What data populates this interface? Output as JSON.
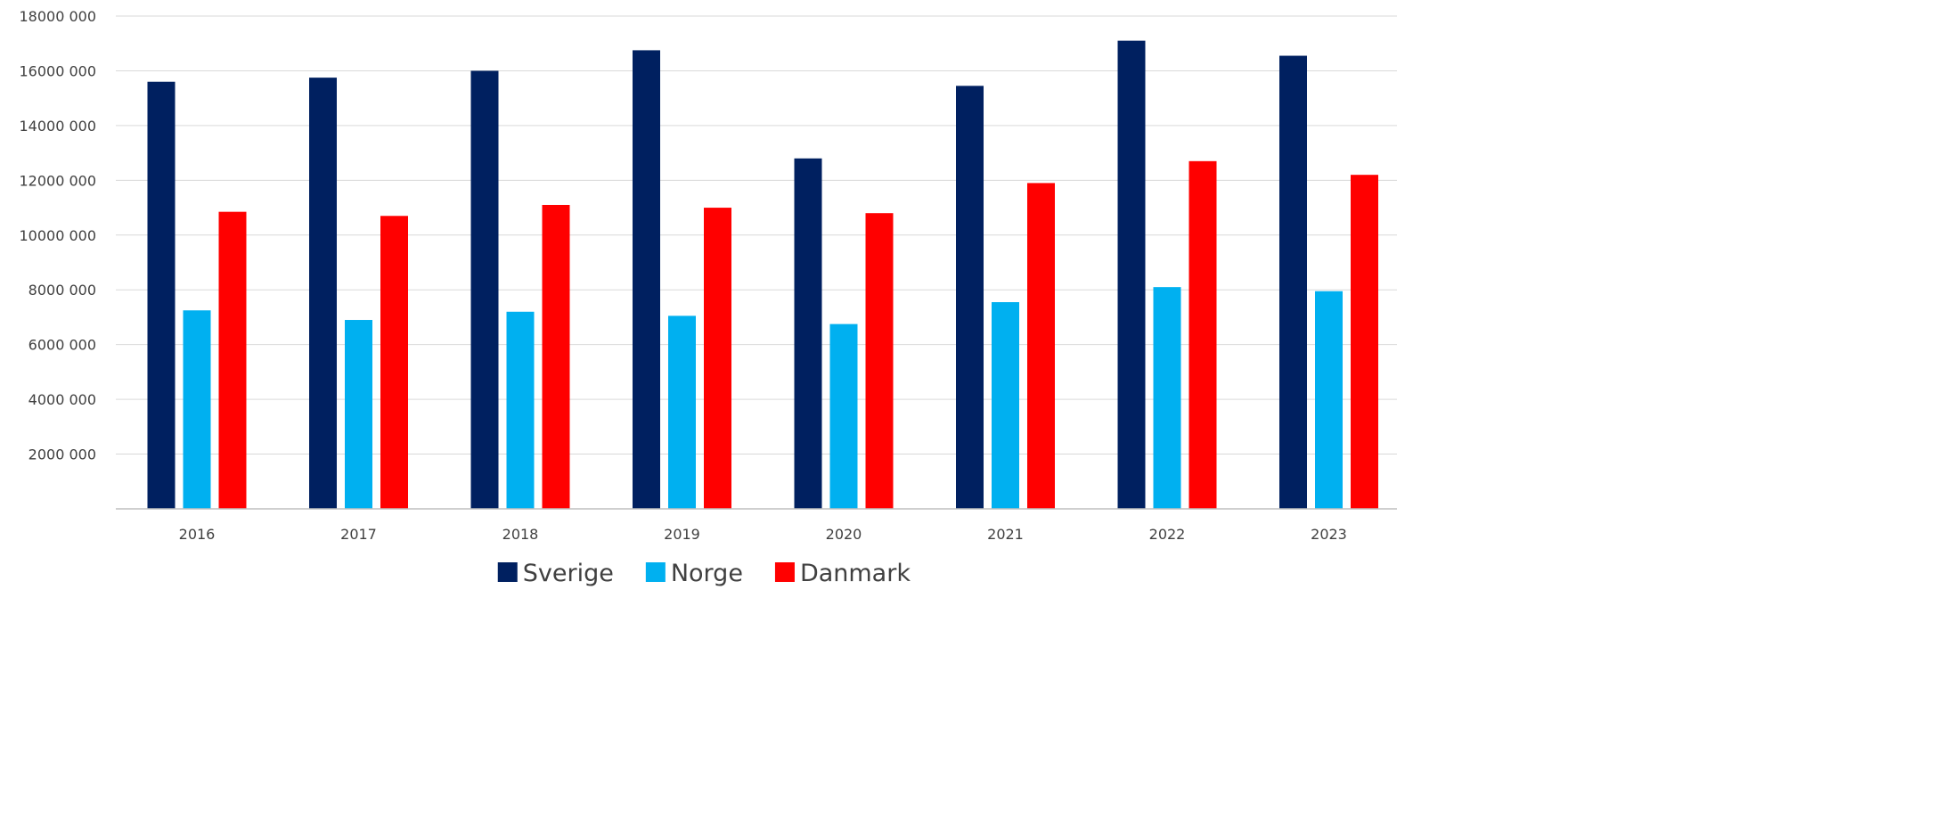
{
  "chart_data": {
    "type": "bar",
    "title": "",
    "xlabel": "",
    "ylabel": "",
    "categories": [
      "2016",
      "2017",
      "2018",
      "2019",
      "2020",
      "2021",
      "2022",
      "2023"
    ],
    "series": [
      {
        "name": "Sverige",
        "color": "#002060",
        "values": [
          15600000,
          15750000,
          16000000,
          16750000,
          12800000,
          15450000,
          17100000,
          16550000
        ]
      },
      {
        "name": "Norge",
        "color": "#00B0F0",
        "values": [
          7250000,
          6900000,
          7200000,
          7050000,
          6750000,
          7550000,
          8100000,
          7950000
        ]
      },
      {
        "name": "Danmark",
        "color": "#FF0000",
        "values": [
          10850000,
          10700000,
          11100000,
          11000000,
          10800000,
          11900000,
          12700000,
          12200000
        ]
      }
    ],
    "ylim": [
      0,
      18000000
    ],
    "yticks": [
      2000000,
      4000000,
      6000000,
      8000000,
      10000000,
      12000000,
      14000000,
      16000000,
      18000000
    ],
    "ytick_labels": [
      "2000 000",
      "4000 000",
      "6000 000",
      "8000 000",
      "10000 000",
      "12000 000",
      "14000 000",
      "16000 000",
      "18000 000"
    ],
    "grid": true,
    "legend_position": "bottom-center"
  }
}
